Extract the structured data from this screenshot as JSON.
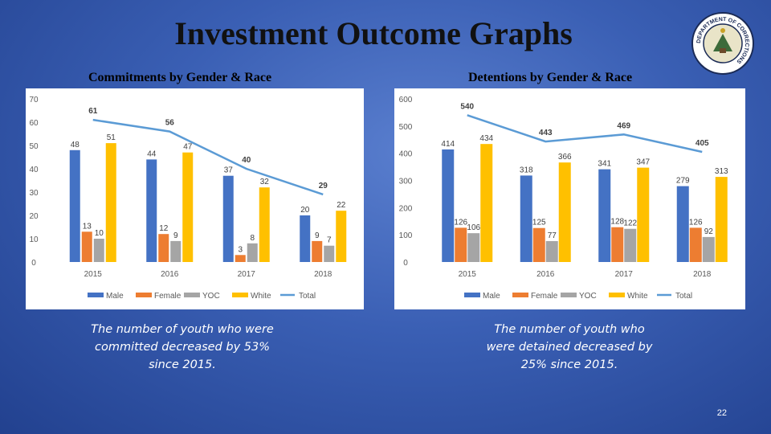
{
  "slide": {
    "title": "Investment Outcome Graphs",
    "page_number": "22",
    "seal_text": "DEPARTMENT OF CORRECTIONS"
  },
  "colors": {
    "male": "#4472c4",
    "female": "#ed7d31",
    "yoc": "#a5a5a5",
    "white": "#ffc000",
    "total": "#5b9bd5"
  },
  "captions": {
    "left": [
      "The number of youth who were",
      "committed decreased by 53%",
      "since 2015."
    ],
    "right": [
      "The number of youth who",
      "were detained decreased by",
      "25% since 2015."
    ]
  },
  "chart_data": [
    {
      "type": "bar",
      "title": "Commitments by Gender & Race",
      "categories": [
        "2015",
        "2016",
        "2017",
        "2018"
      ],
      "ylim": [
        0,
        70
      ],
      "yticks": [
        0,
        10,
        20,
        30,
        40,
        50,
        60,
        70
      ],
      "series": [
        {
          "name": "Male",
          "color": "male",
          "values": [
            48,
            44,
            37,
            20
          ]
        },
        {
          "name": "Female",
          "color": "female",
          "values": [
            13,
            12,
            3,
            9
          ]
        },
        {
          "name": "YOC",
          "color": "yoc",
          "values": [
            10,
            9,
            8,
            7
          ]
        },
        {
          "name": "White",
          "color": "white",
          "values": [
            51,
            47,
            32,
            22
          ]
        }
      ],
      "line": {
        "name": "Total",
        "color": "total",
        "values": [
          61,
          56,
          40,
          29
        ]
      },
      "legend": [
        "Male",
        "Female",
        "YOC",
        "White",
        "Total"
      ]
    },
    {
      "type": "bar",
      "title": "Detentions by Gender & Race",
      "categories": [
        "2015",
        "2016",
        "2017",
        "2018"
      ],
      "ylim": [
        0,
        600
      ],
      "yticks": [
        0,
        100,
        200,
        300,
        400,
        500,
        600
      ],
      "series": [
        {
          "name": "Male",
          "color": "male",
          "values": [
            414,
            318,
            341,
            279
          ]
        },
        {
          "name": "Female",
          "color": "female",
          "values": [
            126,
            125,
            128,
            126
          ]
        },
        {
          "name": "YOC",
          "color": "yoc",
          "values": [
            106,
            77,
            122,
            92
          ]
        },
        {
          "name": "White",
          "color": "white",
          "values": [
            434,
            366,
            347,
            313
          ]
        }
      ],
      "line": {
        "name": "Total",
        "color": "total",
        "values": [
          540,
          443,
          469,
          405
        ]
      },
      "legend": [
        "Male",
        "Female",
        "YOC",
        "White",
        "Total"
      ]
    }
  ]
}
